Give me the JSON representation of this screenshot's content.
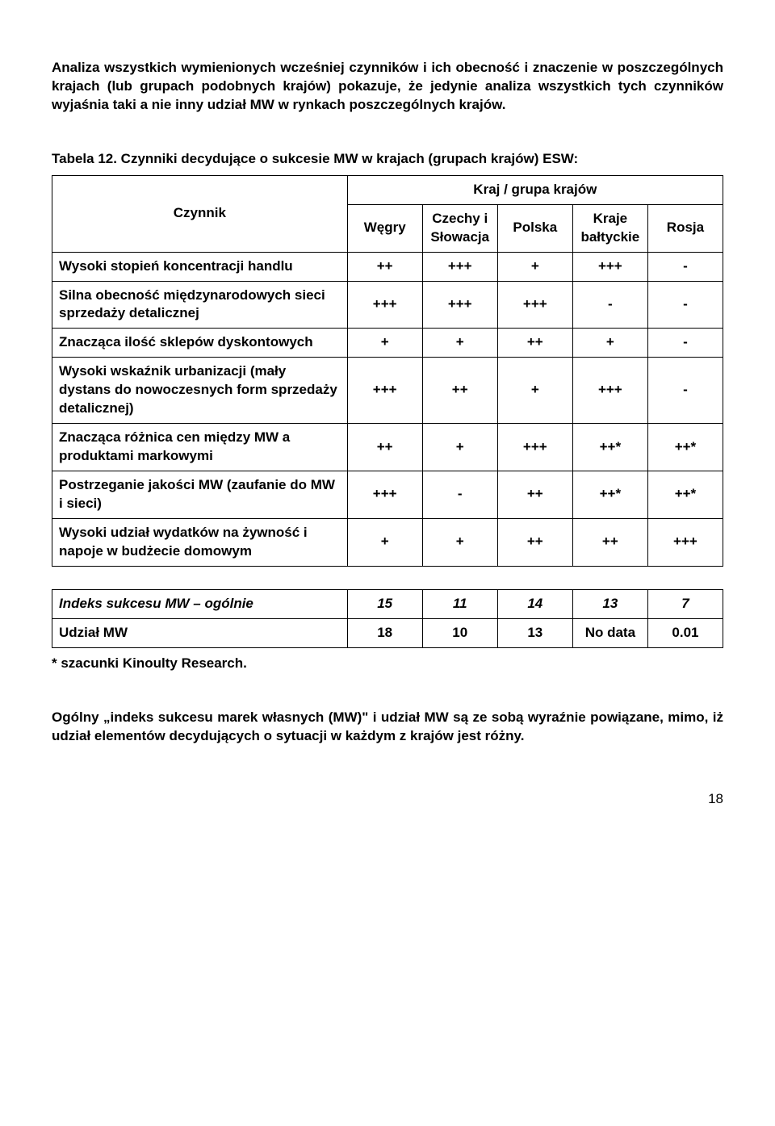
{
  "intro_paragraph": "Analiza wszystkich wymienionych wcześniej czynników i ich obecność i znaczenie w poszczególnych krajach (lub grupach podobnych krajów) pokazuje, że jedynie analiza wszystkich tych czynników wyjaśnia taki a nie inny udział MW w rynkach poszczególnych krajów.",
  "table_caption": "Tabela 12. Czynniki decydujące o sukcesie MW w krajach (grupach krajów) ESW:",
  "headers": {
    "group": "Kraj / grupa krajów",
    "factor": "Czynnik",
    "cols": [
      "Węgry",
      "Czechy i Słowacja",
      "Polska",
      "Kraje bałtyckie",
      "Rosja"
    ]
  },
  "rows": [
    {
      "factor": "Wysoki stopień koncentracji handlu",
      "vals": [
        "++",
        "+++",
        "+",
        "+++",
        "-"
      ]
    },
    {
      "factor": "Silna obecność międzynarodowych sieci sprzedaży detalicznej",
      "vals": [
        "+++",
        "+++",
        "+++",
        "-",
        "-"
      ]
    },
    {
      "factor": "Znacząca ilość sklepów dyskontowych",
      "vals": [
        "+",
        "+",
        "++",
        "+",
        "-"
      ]
    },
    {
      "factor": "Wysoki wskaźnik urbanizacji (mały dystans do nowoczesnych form sprzedaży detalicznej)",
      "vals": [
        "+++",
        "++",
        "+",
        "+++",
        "-"
      ]
    },
    {
      "factor": "Znacząca różnica cen między MW a produktami markowymi",
      "vals": [
        "++",
        "+",
        "+++",
        "++*",
        "++*"
      ]
    },
    {
      "factor": "Postrzeganie jakości MW (zaufanie do MW i sieci)",
      "vals": [
        "+++",
        "-",
        "++",
        "++*",
        "++*"
      ]
    },
    {
      "factor": "Wysoki udział wydatków na żywność i napoje w budżecie domowym",
      "vals": [
        "+",
        "+",
        "++",
        "++",
        "+++"
      ]
    }
  ],
  "summary_rows": [
    {
      "factor": "Indeks sukcesu MW – ogólnie",
      "italic": true,
      "vals": [
        "15",
        "11",
        "14",
        "13",
        "7"
      ]
    },
    {
      "factor": "Udział MW",
      "italic": false,
      "vals": [
        "18",
        "10",
        "13",
        "No data",
        "0.01"
      ]
    }
  ],
  "footnote": "* szacunki Kinoulty Research.",
  "closing_paragraph": "Ogólny „indeks sukcesu marek własnych (MW)\" i udział MW są ze sobą wyraźnie powiązane, mimo, iż udział elementów decydujących o sytuacji w każdym z krajów jest różny.",
  "page_number": "18"
}
